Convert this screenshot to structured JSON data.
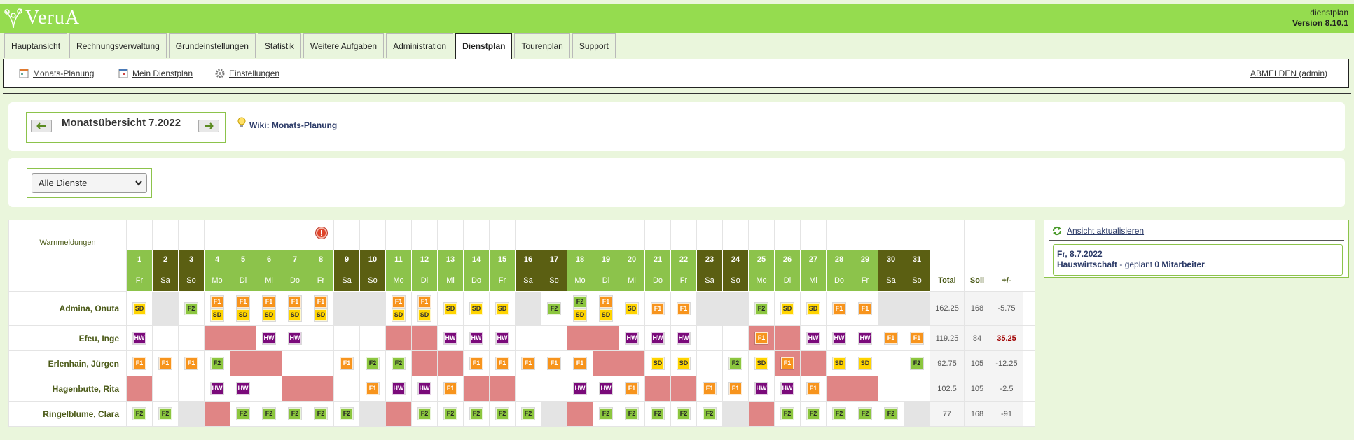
{
  "header": {
    "logo": "VeruA",
    "user": "dienstplan",
    "version": "Version 8.10.1"
  },
  "tabs": [
    "Hauptansicht",
    "Rechnungsverwaltung",
    "Grundeinstellungen",
    "Statistik",
    "Weitere Aufgaben",
    "Administration",
    "Dienstplan",
    "Tourenplan",
    "Support"
  ],
  "active_tab": 6,
  "subnav": {
    "links": [
      "Monats-Planung",
      "Mein Dienstplan",
      "Einstellungen"
    ],
    "logout": "ABMELDEN (admin)"
  },
  "month": {
    "title": "Monatsübersicht 7.2022",
    "wiki": "Wiki: Monats-Planung"
  },
  "filter": "Alle Dienste",
  "table": {
    "warn_label": "Warnmeldungen",
    "days": [
      1,
      2,
      3,
      4,
      5,
      6,
      7,
      8,
      9,
      10,
      11,
      12,
      13,
      14,
      15,
      16,
      17,
      18,
      19,
      20,
      21,
      22,
      23,
      24,
      25,
      26,
      27,
      28,
      29,
      30,
      31
    ],
    "weekdays": [
      "Fr",
      "Sa",
      "So",
      "Mo",
      "Di",
      "Mi",
      "Do",
      "Fr",
      "Sa",
      "So",
      "Mo",
      "Di",
      "Mi",
      "Do",
      "Fr",
      "Sa",
      "So",
      "Mo",
      "Di",
      "Mi",
      "Do",
      "Fr",
      "Sa",
      "So",
      "Mo",
      "Di",
      "Mi",
      "Do",
      "Fr",
      "Sa",
      "So"
    ],
    "day_colors": [
      "#8cc34b",
      "#5b5f12",
      "#5b5f12",
      "#8cc34b",
      "#8cc34b",
      "#8cc34b",
      "#8cc34b",
      "#8cc34b",
      "#5b5f12",
      "#5b5f12",
      "#8cc34b",
      "#8cc34b",
      "#8cc34b",
      "#8cc34b",
      "#8cc34b",
      "#5b5f12",
      "#5b5f12",
      "#8cc34b",
      "#8cc34b",
      "#8cc34b",
      "#8cc34b",
      "#8cc34b",
      "#5b5f12",
      "#5b5f12",
      "#8cc34b",
      "#8cc34b",
      "#8cc34b",
      "#8cc34b",
      "#8cc34b",
      "#5b5f12",
      "#5b5f12"
    ],
    "totals_header": [
      "Total",
      "Soll",
      "+/-"
    ],
    "shift_colors": {
      "F1": {
        "bg": "#f7941d",
        "fg": "#ffffff"
      },
      "SD": {
        "bg": "#ffd400",
        "fg": "#333333"
      },
      "F2": {
        "bg": "#8cc63f",
        "fg": "#222222"
      },
      "HW": {
        "bg": "#7a0a7a",
        "fg": "#ffffff"
      }
    },
    "rows": [
      {
        "name": "Admina, Onuta",
        "total": 162.25,
        "soll": 168,
        "diff": -5.75,
        "cells": [
          {
            "bg": "#ffffff",
            "shifts": [
              "SD"
            ]
          },
          {
            "bg": "#e4e4e4"
          },
          {
            "bg": "#ffffff",
            "shifts": [
              "F2"
            ]
          },
          {
            "bg": "#ffffff",
            "shifts": [
              "F1",
              "SD"
            ]
          },
          {
            "bg": "#ffffff",
            "shifts": [
              "F1",
              "SD"
            ]
          },
          {
            "bg": "#ffffff",
            "shifts": [
              "F1",
              "SD"
            ]
          },
          {
            "bg": "#ffffff",
            "shifts": [
              "F1",
              "SD"
            ]
          },
          {
            "bg": "#ffffff",
            "shifts": [
              "F1",
              "SD"
            ]
          },
          {
            "bg": "#e4e4e4"
          },
          {
            "bg": "#e4e4e4"
          },
          {
            "bg": "#ffffff",
            "shifts": [
              "F1",
              "SD"
            ]
          },
          {
            "bg": "#ffffff",
            "shifts": [
              "F1",
              "SD"
            ]
          },
          {
            "bg": "#ffffff",
            "shifts": [
              "SD"
            ]
          },
          {
            "bg": "#ffffff",
            "shifts": [
              "SD"
            ]
          },
          {
            "bg": "#ffffff",
            "shifts": [
              "SD"
            ]
          },
          {
            "bg": "#e4e4e4"
          },
          {
            "bg": "#ffffff",
            "shifts": [
              "F2"
            ]
          },
          {
            "bg": "#ffffff",
            "shifts": [
              "F2",
              "SD"
            ]
          },
          {
            "bg": "#ffffff",
            "shifts": [
              "F1",
              "SD"
            ]
          },
          {
            "bg": "#ffffff",
            "shifts": [
              "SD"
            ]
          },
          {
            "bg": "#ffffff",
            "shifts": [
              "F1"
            ]
          },
          {
            "bg": "#ffffff",
            "shifts": [
              "F1"
            ]
          },
          {
            "bg": "#e4e4e4"
          },
          {
            "bg": "#e4e4e4"
          },
          {
            "bg": "#ffffff",
            "shifts": [
              "F2"
            ]
          },
          {
            "bg": "#ffffff",
            "shifts": [
              "SD"
            ]
          },
          {
            "bg": "#ffffff",
            "shifts": [
              "SD"
            ]
          },
          {
            "bg": "#ffffff",
            "shifts": [
              "F1"
            ]
          },
          {
            "bg": "#ffffff",
            "shifts": [
              "F1"
            ]
          },
          {
            "bg": "#e4e4e4"
          },
          {
            "bg": "#e4e4e4"
          }
        ]
      },
      {
        "name": "Efeu, Inge",
        "total": 119.25,
        "soll": 84,
        "diff": 35.25,
        "cells": [
          {
            "bg": "#ffffff",
            "shifts": [
              "HW"
            ]
          },
          {
            "bg": "#ffffff"
          },
          {
            "bg": "#ffffff"
          },
          {
            "bg": "#e08585"
          },
          {
            "bg": "#e08585"
          },
          {
            "bg": "#ffffff",
            "shifts": [
              "HW"
            ]
          },
          {
            "bg": "#ffffff",
            "shifts": [
              "HW"
            ]
          },
          {
            "bg": "#ffffff"
          },
          {
            "bg": "#ffffff"
          },
          {
            "bg": "#ffffff"
          },
          {
            "bg": "#e08585"
          },
          {
            "bg": "#e08585"
          },
          {
            "bg": "#ffffff",
            "shifts": [
              "HW"
            ]
          },
          {
            "bg": "#ffffff",
            "shifts": [
              "HW"
            ]
          },
          {
            "bg": "#ffffff",
            "shifts": [
              "HW"
            ]
          },
          {
            "bg": "#ffffff"
          },
          {
            "bg": "#ffffff"
          },
          {
            "bg": "#e08585"
          },
          {
            "bg": "#e08585"
          },
          {
            "bg": "#ffffff",
            "shifts": [
              "HW"
            ]
          },
          {
            "bg": "#ffffff",
            "shifts": [
              "HW"
            ]
          },
          {
            "bg": "#ffffff",
            "shifts": [
              "HW"
            ]
          },
          {
            "bg": "#ffffff"
          },
          {
            "bg": "#ffffff"
          },
          {
            "bg": "#e08585",
            "shifts": [
              "F1"
            ]
          },
          {
            "bg": "#e08585"
          },
          {
            "bg": "#ffffff",
            "shifts": [
              "HW"
            ]
          },
          {
            "bg": "#ffffff",
            "shifts": [
              "HW"
            ]
          },
          {
            "bg": "#ffffff",
            "shifts": [
              "HW"
            ]
          },
          {
            "bg": "#ffffff",
            "shifts": [
              "F1"
            ]
          },
          {
            "bg": "#ffffff",
            "shifts": [
              "F1"
            ]
          }
        ]
      },
      {
        "name": "Erlenhain, Jürgen",
        "total": 92.75,
        "soll": 105,
        "diff": -12.25,
        "cells": [
          {
            "bg": "#ffffff",
            "shifts": [
              "F1"
            ]
          },
          {
            "bg": "#ffffff",
            "shifts": [
              "F1"
            ]
          },
          {
            "bg": "#ffffff",
            "shifts": [
              "F1"
            ]
          },
          {
            "bg": "#ffffff",
            "shifts": [
              "F2"
            ]
          },
          {
            "bg": "#e08585"
          },
          {
            "bg": "#e08585"
          },
          {
            "bg": "#ffffff"
          },
          {
            "bg": "#ffffff"
          },
          {
            "bg": "#ffffff",
            "shifts": [
              "F1"
            ]
          },
          {
            "bg": "#ffffff",
            "shifts": [
              "F2"
            ]
          },
          {
            "bg": "#ffffff",
            "shifts": [
              "F2"
            ]
          },
          {
            "bg": "#e08585"
          },
          {
            "bg": "#e08585"
          },
          {
            "bg": "#ffffff",
            "shifts": [
              "F1"
            ]
          },
          {
            "bg": "#ffffff",
            "shifts": [
              "F1"
            ]
          },
          {
            "bg": "#ffffff",
            "shifts": [
              "F1"
            ]
          },
          {
            "bg": "#ffffff",
            "shifts": [
              "F1"
            ]
          },
          {
            "bg": "#ffffff",
            "shifts": [
              "F1"
            ]
          },
          {
            "bg": "#e08585"
          },
          {
            "bg": "#e08585"
          },
          {
            "bg": "#ffffff",
            "shifts": [
              "SD"
            ]
          },
          {
            "bg": "#ffffff",
            "shifts": [
              "SD"
            ]
          },
          {
            "bg": "#ffffff"
          },
          {
            "bg": "#ffffff",
            "shifts": [
              "F2"
            ]
          },
          {
            "bg": "#ffffff",
            "shifts": [
              "SD"
            ]
          },
          {
            "bg": "#e08585",
            "shifts": [
              "F1"
            ]
          },
          {
            "bg": "#e08585"
          },
          {
            "bg": "#ffffff",
            "shifts": [
              "SD"
            ]
          },
          {
            "bg": "#ffffff",
            "shifts": [
              "SD"
            ]
          },
          {
            "bg": "#ffffff"
          },
          {
            "bg": "#ffffff",
            "shifts": [
              "F2"
            ]
          }
        ]
      },
      {
        "name": "Hagenbutte, Rita",
        "total": 102.5,
        "soll": 105,
        "diff": -2.5,
        "cells": [
          {
            "bg": "#e08585"
          },
          {
            "bg": "#ffffff"
          },
          {
            "bg": "#ffffff"
          },
          {
            "bg": "#ffffff",
            "shifts": [
              "HW"
            ]
          },
          {
            "bg": "#ffffff",
            "shifts": [
              "HW"
            ]
          },
          {
            "bg": "#ffffff"
          },
          {
            "bg": "#e08585"
          },
          {
            "bg": "#e08585"
          },
          {
            "bg": "#ffffff"
          },
          {
            "bg": "#ffffff",
            "shifts": [
              "F1"
            ]
          },
          {
            "bg": "#ffffff",
            "shifts": [
              "HW"
            ]
          },
          {
            "bg": "#ffffff",
            "shifts": [
              "HW"
            ]
          },
          {
            "bg": "#ffffff",
            "shifts": [
              "F1"
            ]
          },
          {
            "bg": "#e08585"
          },
          {
            "bg": "#e08585"
          },
          {
            "bg": "#ffffff"
          },
          {
            "bg": "#ffffff"
          },
          {
            "bg": "#ffffff",
            "shifts": [
              "HW"
            ]
          },
          {
            "bg": "#ffffff",
            "shifts": [
              "HW"
            ]
          },
          {
            "bg": "#ffffff",
            "shifts": [
              "F1"
            ]
          },
          {
            "bg": "#e08585"
          },
          {
            "bg": "#e08585"
          },
          {
            "bg": "#ffffff",
            "shifts": [
              "F1"
            ]
          },
          {
            "bg": "#ffffff",
            "shifts": [
              "F1"
            ]
          },
          {
            "bg": "#ffffff",
            "shifts": [
              "HW"
            ]
          },
          {
            "bg": "#ffffff",
            "shifts": [
              "HW"
            ]
          },
          {
            "bg": "#ffffff",
            "shifts": [
              "F1"
            ]
          },
          {
            "bg": "#e08585"
          },
          {
            "bg": "#e08585"
          },
          {
            "bg": "#ffffff"
          },
          {
            "bg": "#ffffff"
          }
        ]
      },
      {
        "name": "Ringelblume, Clara",
        "total": 77,
        "soll": 168,
        "diff": -91,
        "cells": [
          {
            "bg": "#ffffff",
            "shifts": [
              "F2"
            ]
          },
          {
            "bg": "#ffffff",
            "shifts": [
              "F2"
            ]
          },
          {
            "bg": "#e4e4e4"
          },
          {
            "bg": "#e08585"
          },
          {
            "bg": "#ffffff",
            "shifts": [
              "F2"
            ]
          },
          {
            "bg": "#ffffff",
            "shifts": [
              "F2"
            ]
          },
          {
            "bg": "#ffffff",
            "shifts": [
              "F2"
            ]
          },
          {
            "bg": "#ffffff",
            "shifts": [
              "F2"
            ]
          },
          {
            "bg": "#ffffff",
            "shifts": [
              "F2"
            ]
          },
          {
            "bg": "#e4e4e4"
          },
          {
            "bg": "#e08585"
          },
          {
            "bg": "#ffffff",
            "shifts": [
              "F2"
            ]
          },
          {
            "bg": "#ffffff",
            "shifts": [
              "F2"
            ]
          },
          {
            "bg": "#ffffff",
            "shifts": [
              "F2"
            ]
          },
          {
            "bg": "#ffffff",
            "shifts": [
              "F2"
            ]
          },
          {
            "bg": "#ffffff",
            "shifts": [
              "F2"
            ]
          },
          {
            "bg": "#e4e4e4"
          },
          {
            "bg": "#e08585"
          },
          {
            "bg": "#ffffff",
            "shifts": [
              "F2"
            ]
          },
          {
            "bg": "#ffffff",
            "shifts": [
              "F2"
            ]
          },
          {
            "bg": "#ffffff",
            "shifts": [
              "F2"
            ]
          },
          {
            "bg": "#ffffff",
            "shifts": [
              "F2"
            ]
          },
          {
            "bg": "#ffffff",
            "shifts": [
              "F2"
            ]
          },
          {
            "bg": "#e4e4e4"
          },
          {
            "bg": "#e08585"
          },
          {
            "bg": "#ffffff",
            "shifts": [
              "F2"
            ]
          },
          {
            "bg": "#ffffff",
            "shifts": [
              "F2"
            ]
          },
          {
            "bg": "#ffffff",
            "shifts": [
              "F2"
            ]
          },
          {
            "bg": "#ffffff",
            "shifts": [
              "F2"
            ]
          },
          {
            "bg": "#ffffff",
            "shifts": [
              "F2"
            ]
          },
          {
            "bg": "#e4e4e4"
          }
        ]
      }
    ]
  },
  "side": {
    "refresh": "Ansicht aktualisieren",
    "date": "Fr, 8.7.2022",
    "service": "Hauswirtschaft",
    "planned": "- geplant",
    "count": "0 Mitarbeiter",
    "end": "."
  }
}
